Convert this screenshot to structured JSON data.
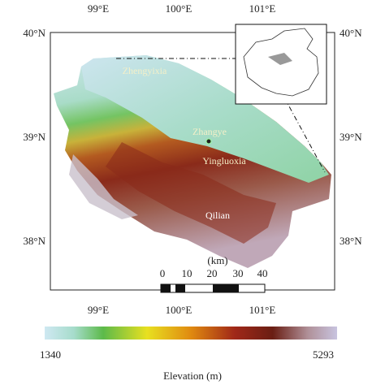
{
  "map": {
    "lon_labels_top": [
      "99°E",
      "100°E",
      "101°E"
    ],
    "lon_labels_bottom": [
      "99°E",
      "100°E",
      "101°E"
    ],
    "lat_labels_left": [
      "40°N",
      "39°N",
      "38°N"
    ],
    "lat_labels_right": [
      "40°N",
      "39°N",
      "38°N"
    ],
    "places": [
      "Zhengyixia",
      "Zhangye",
      "Yingluoxia",
      "Qilian"
    ],
    "scale_bar": {
      "unit": "(km)",
      "labels": [
        0,
        10,
        20,
        30,
        40
      ]
    },
    "colorbar": {
      "min": 1340,
      "max": 5293,
      "title": "Elevation (m)"
    }
  }
}
